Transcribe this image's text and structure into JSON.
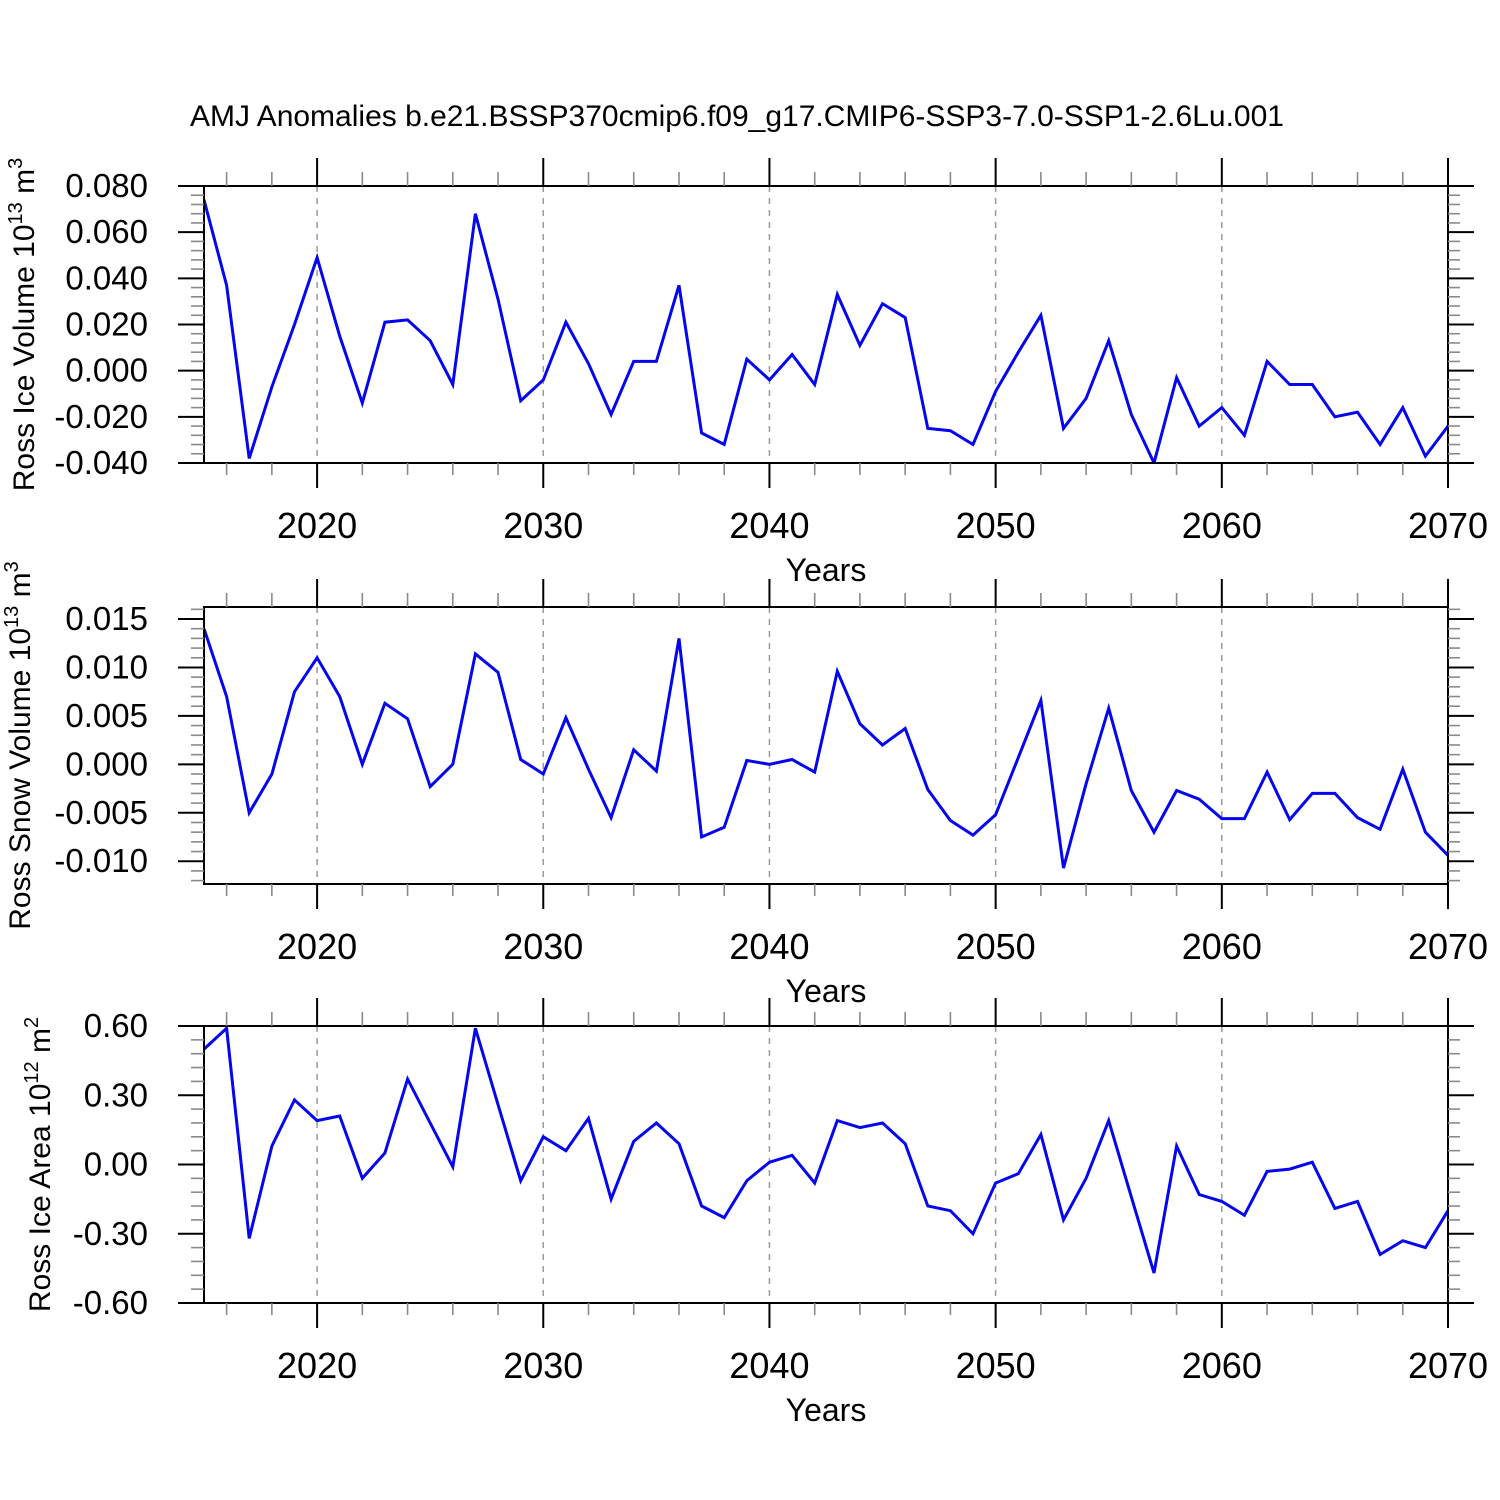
{
  "title": "AMJ Anomalies b.e21.BSSP370cmip6.f09_g17.CMIP6-SSP3-7.0-SSP1-2.6Lu.001",
  "colors": {
    "line": "#0505ee",
    "grid": "#999999",
    "minor_tick": "#8a8a8a",
    "major_tick": "#000000",
    "frame": "#000000"
  },
  "chart_data": [
    {
      "type": "line",
      "id": "ross-ice-volume",
      "ylabel": {
        "base": "Ross Ice Volume 10",
        "exp": "13",
        "unit": " m",
        "unit_exp": "3"
      },
      "xlabel": "Years",
      "xlim": [
        2015,
        2070
      ],
      "ylim": [
        -0.04,
        0.08
      ],
      "x_start": 2015,
      "x": [
        2015,
        2016,
        2017,
        2018,
        2019,
        2020,
        2021,
        2022,
        2023,
        2024,
        2025,
        2026,
        2027,
        2028,
        2029,
        2030,
        2031,
        2032,
        2033,
        2034,
        2035,
        2036,
        2037,
        2038,
        2039,
        2040,
        2041,
        2042,
        2043,
        2044,
        2045,
        2046,
        2047,
        2048,
        2049,
        2050,
        2051,
        2052,
        2053,
        2054,
        2055,
        2056,
        2057,
        2058,
        2059,
        2060,
        2061,
        2062,
        2063,
        2064,
        2065,
        2066,
        2067,
        2068,
        2069,
        2070
      ],
      "values": [
        0.074,
        0.037,
        -0.038,
        -0.007,
        0.02,
        0.049,
        0.015,
        -0.014,
        0.021,
        0.022,
        0.013,
        -0.006,
        0.068,
        0.031,
        -0.013,
        -0.004,
        0.021,
        0.003,
        -0.019,
        0.004,
        0.004,
        0.037,
        -0.027,
        -0.032,
        0.005,
        -0.004,
        0.007,
        -0.006,
        0.033,
        0.011,
        0.029,
        0.023,
        -0.025,
        -0.026,
        -0.032,
        -0.009,
        0.008,
        0.024,
        -0.025,
        -0.012,
        0.013,
        -0.019,
        -0.04,
        -0.003,
        -0.024,
        -0.016,
        -0.028,
        0.004,
        -0.006,
        -0.006,
        -0.02,
        -0.018,
        -0.032,
        -0.016,
        -0.037,
        -0.024
      ],
      "ytick_values": [
        0.08,
        0.06,
        0.04,
        0.02,
        0.0,
        -0.02,
        -0.04
      ],
      "ytick_labels": [
        "0.080",
        "0.060",
        "0.040",
        "0.020",
        "0.000",
        "-0.020",
        "-0.040"
      ],
      "y_minor_step": 0.004,
      "xtick_values": [
        2020,
        2030,
        2040,
        2050,
        2060,
        2070
      ],
      "xtick_labels": [
        "2020",
        "2030",
        "2040",
        "2050",
        "2060",
        "2070"
      ],
      "x_minor_step": 2,
      "grid_x": [
        2020,
        2030,
        2040,
        2050,
        2060
      ]
    },
    {
      "type": "line",
      "id": "ross-snow-volume",
      "ylabel": {
        "base": "Ross Snow Volume 10",
        "exp": "13",
        "unit": " m",
        "unit_exp": "3"
      },
      "xlabel": "Years",
      "xlim": [
        2015,
        2070
      ],
      "ylim": [
        -0.01235,
        0.01624
      ],
      "x_start": 2015,
      "x": [
        2015,
        2016,
        2017,
        2018,
        2019,
        2020,
        2021,
        2022,
        2023,
        2024,
        2025,
        2026,
        2027,
        2028,
        2029,
        2030,
        2031,
        2032,
        2033,
        2034,
        2035,
        2036,
        2037,
        2038,
        2039,
        2040,
        2041,
        2042,
        2043,
        2044,
        2045,
        2046,
        2047,
        2048,
        2049,
        2050,
        2051,
        2052,
        2053,
        2054,
        2055,
        2056,
        2057,
        2058,
        2059,
        2060,
        2061,
        2062,
        2063,
        2064,
        2065,
        2066,
        2067,
        2068,
        2069,
        2070
      ],
      "values": [
        0.014,
        0.007,
        -0.005,
        -0.001,
        0.0075,
        0.011,
        0.007,
        0.0,
        0.0063,
        0.0047,
        -0.0023,
        0.0,
        0.0114,
        0.0095,
        0.0005,
        -0.001,
        0.0048,
        -0.0005,
        -0.0055,
        0.0015,
        -0.0007,
        0.013,
        -0.0075,
        -0.0065,
        0.0004,
        0.0,
        0.0005,
        -0.0008,
        0.0096,
        0.0042,
        0.002,
        0.0037,
        -0.0026,
        -0.0058,
        -0.0073,
        -0.0052,
        0.0007,
        0.0066,
        -0.0107,
        -0.002,
        0.0058,
        -0.0027,
        -0.007,
        -0.0027,
        -0.0036,
        -0.0056,
        -0.0056,
        -0.0008,
        -0.0057,
        -0.003,
        -0.003,
        -0.0055,
        -0.0067,
        -0.0005,
        -0.007,
        -0.0094
      ],
      "ytick_values": [
        0.015,
        0.01,
        0.005,
        0.0,
        -0.005,
        -0.01
      ],
      "ytick_labels": [
        "0.015",
        "0.010",
        "0.005",
        "0.000",
        "-0.005",
        "-0.010"
      ],
      "y_minor_step": 0.001,
      "xtick_values": [
        2020,
        2030,
        2040,
        2050,
        2060,
        2070
      ],
      "xtick_labels": [
        "2020",
        "2030",
        "2040",
        "2050",
        "2060",
        "2070"
      ],
      "x_minor_step": 2,
      "grid_x": [
        2020,
        2030,
        2040,
        2050,
        2060
      ]
    },
    {
      "type": "line",
      "id": "ross-ice-area",
      "ylabel": {
        "base": "Ross Ice Area 10",
        "exp": "12",
        "unit": " m",
        "unit_exp": "2"
      },
      "xlabel": "Years",
      "xlim": [
        2015,
        2070
      ],
      "ylim": [
        -0.6,
        0.6
      ],
      "x_start": 2015,
      "x": [
        2015,
        2016,
        2017,
        2018,
        2019,
        2020,
        2021,
        2022,
        2023,
        2024,
        2025,
        2026,
        2027,
        2028,
        2029,
        2030,
        2031,
        2032,
        2033,
        2034,
        2035,
        2036,
        2037,
        2038,
        2039,
        2040,
        2041,
        2042,
        2043,
        2044,
        2045,
        2046,
        2047,
        2048,
        2049,
        2050,
        2051,
        2052,
        2053,
        2054,
        2055,
        2056,
        2057,
        2058,
        2059,
        2060,
        2061,
        2062,
        2063,
        2064,
        2065,
        2066,
        2067,
        2068,
        2069,
        2070
      ],
      "values": [
        0.5,
        0.59,
        -0.32,
        0.08,
        0.28,
        0.19,
        0.21,
        -0.06,
        0.05,
        0.37,
        0.18,
        -0.01,
        0.59,
        0.26,
        -0.07,
        0.12,
        0.06,
        0.2,
        -0.15,
        0.1,
        0.18,
        0.09,
        -0.18,
        -0.23,
        -0.07,
        0.01,
        0.04,
        -0.08,
        0.19,
        0.16,
        0.18,
        0.09,
        -0.18,
        -0.2,
        -0.3,
        -0.08,
        -0.04,
        0.13,
        -0.24,
        -0.06,
        0.19,
        -0.14,
        -0.47,
        0.08,
        -0.13,
        -0.16,
        -0.22,
        -0.03,
        -0.02,
        0.01,
        -0.19,
        -0.16,
        -0.39,
        -0.33,
        -0.36,
        -0.2
      ],
      "ytick_values": [
        0.6,
        0.3,
        0.0,
        -0.3,
        -0.6
      ],
      "ytick_labels": [
        "0.60",
        "0.30",
        "0.00",
        "-0.30",
        "-0.60"
      ],
      "y_minor_step": 0.06,
      "xtick_values": [
        2020,
        2030,
        2040,
        2050,
        2060,
        2070
      ],
      "xtick_labels": [
        "2020",
        "2030",
        "2040",
        "2050",
        "2060",
        "2070"
      ],
      "x_minor_step": 2,
      "grid_x": [
        2020,
        2030,
        2040,
        2050,
        2060
      ]
    }
  ]
}
